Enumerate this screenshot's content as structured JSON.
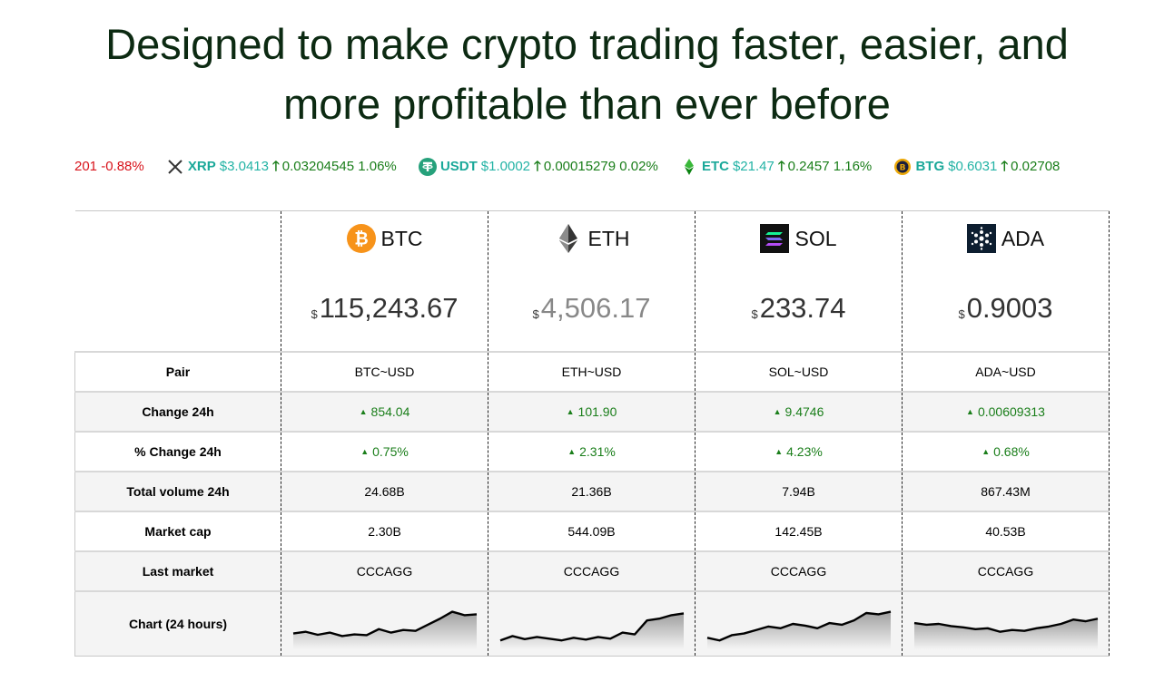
{
  "headline": {
    "line1": "Designed to make crypto trading faster, easier, and",
    "line2": "more profitable than ever before"
  },
  "ticker": {
    "partial": {
      "price_tail": "201",
      "change_pct": "-0.88%"
    },
    "items": [
      {
        "symbol": "XRP",
        "icon": "xrp-icon",
        "price": "$3.0413",
        "change": "0.03204545",
        "change_pct": "1.06%"
      },
      {
        "symbol": "USDT",
        "icon": "usdt-icon",
        "price": "$1.0002",
        "change": "0.00015279",
        "change_pct": "0.02%"
      },
      {
        "symbol": "ETC",
        "icon": "etc-icon",
        "price": "$21.47",
        "change": "0.2457",
        "change_pct": "1.16%"
      },
      {
        "symbol": "BTG",
        "icon": "btg-icon",
        "price": "$0.6031",
        "change": "0.02708",
        "change_pct": ""
      }
    ]
  },
  "comparison": {
    "coins": [
      {
        "symbol": "BTC",
        "icon": "bitcoin-icon",
        "currency": "$",
        "price": "115,243.67"
      },
      {
        "symbol": "ETH",
        "icon": "ethereum-icon",
        "currency": "$",
        "price": "4,506.17"
      },
      {
        "symbol": "SOL",
        "icon": "solana-icon",
        "currency": "$",
        "price": "233.74"
      },
      {
        "symbol": "ADA",
        "icon": "cardano-icon",
        "currency": "$",
        "price": "0.9003"
      }
    ],
    "rows": [
      {
        "label": "Pair",
        "values": [
          "BTC~USD",
          "ETH~USD",
          "SOL~USD",
          "ADA~USD"
        ]
      },
      {
        "label": "Change 24h",
        "values": [
          "854.04",
          "101.90",
          "9.4746",
          "0.00609313"
        ]
      },
      {
        "label": "% Change 24h",
        "values": [
          "0.75%",
          "2.31%",
          "4.23%",
          "0.68%"
        ]
      },
      {
        "label": "Total volume 24h",
        "values": [
          "24.68B",
          "21.36B",
          "7.94B",
          "867.43M"
        ]
      },
      {
        "label": "Market cap",
        "values": [
          "2.30B",
          "544.09B",
          "142.45B",
          "40.53B"
        ]
      },
      {
        "label": "Last market",
        "values": [
          "CCCAGG",
          "CCCAGG",
          "CCCAGG",
          "CCCAGG"
        ]
      }
    ],
    "chart_row_label": "Chart (24 hours)",
    "sparklines": [
      [
        0.28,
        0.32,
        0.25,
        0.3,
        0.22,
        0.26,
        0.24,
        0.38,
        0.3,
        0.36,
        0.34,
        0.48,
        0.62,
        0.78,
        0.7,
        0.72
      ],
      [
        0.12,
        0.22,
        0.15,
        0.2,
        0.16,
        0.12,
        0.18,
        0.14,
        0.2,
        0.16,
        0.3,
        0.26,
        0.58,
        0.62,
        0.7,
        0.74
      ],
      [
        0.18,
        0.12,
        0.24,
        0.28,
        0.36,
        0.44,
        0.4,
        0.5,
        0.46,
        0.4,
        0.52,
        0.48,
        0.58,
        0.75,
        0.72,
        0.78
      ],
      [
        0.52,
        0.48,
        0.5,
        0.45,
        0.42,
        0.38,
        0.4,
        0.32,
        0.36,
        0.34,
        0.4,
        0.44,
        0.5,
        0.6,
        0.56,
        0.62
      ]
    ]
  },
  "colors": {
    "headline": "#0c2a12",
    "positive": "#1a7e1a",
    "negative": "#d8131b",
    "ticker_symbol": "#1aa899"
  }
}
